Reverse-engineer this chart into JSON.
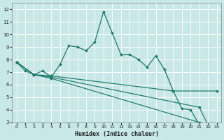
{
  "xlabel": "Humidex (Indice chaleur)",
  "bg_color": "#c8e8e8",
  "grid_color": "#ffffff",
  "line_color": "#1a7868",
  "xlim": [
    -0.5,
    23.5
  ],
  "ylim": [
    3,
    12.5
  ],
  "xticks": [
    0,
    1,
    2,
    3,
    4,
    5,
    6,
    7,
    8,
    9,
    10,
    11,
    12,
    13,
    14,
    15,
    16,
    17,
    18,
    19,
    20,
    21,
    22,
    23
  ],
  "yticks": [
    3,
    4,
    5,
    6,
    7,
    8,
    9,
    10,
    11,
    12
  ],
  "s1_x": [
    0,
    1,
    2,
    3,
    4,
    5,
    6,
    7,
    8,
    9,
    10,
    11,
    12,
    13,
    14,
    15,
    16,
    17,
    18,
    19,
    20,
    21,
    22,
    23
  ],
  "s1_y": [
    7.8,
    7.1,
    6.8,
    7.1,
    6.6,
    7.6,
    9.1,
    9.0,
    8.7,
    9.4,
    11.8,
    10.1,
    8.4,
    8.4,
    8.0,
    7.4,
    8.3,
    7.2,
    5.5,
    4.1,
    4.0,
    2.8,
    2.6,
    2.6
  ],
  "s2_x": [
    0,
    2,
    4,
    18,
    23
  ],
  "s2_y": [
    7.8,
    6.8,
    6.7,
    5.5,
    5.5
  ],
  "s3_x": [
    0,
    2,
    4,
    21,
    22,
    23
  ],
  "s3_y": [
    7.8,
    6.8,
    6.6,
    4.2,
    2.8,
    2.7
  ],
  "s4_x": [
    0,
    2,
    4,
    21,
    22,
    23
  ],
  "s4_y": [
    7.8,
    6.8,
    6.5,
    3.0,
    2.65,
    2.55
  ]
}
